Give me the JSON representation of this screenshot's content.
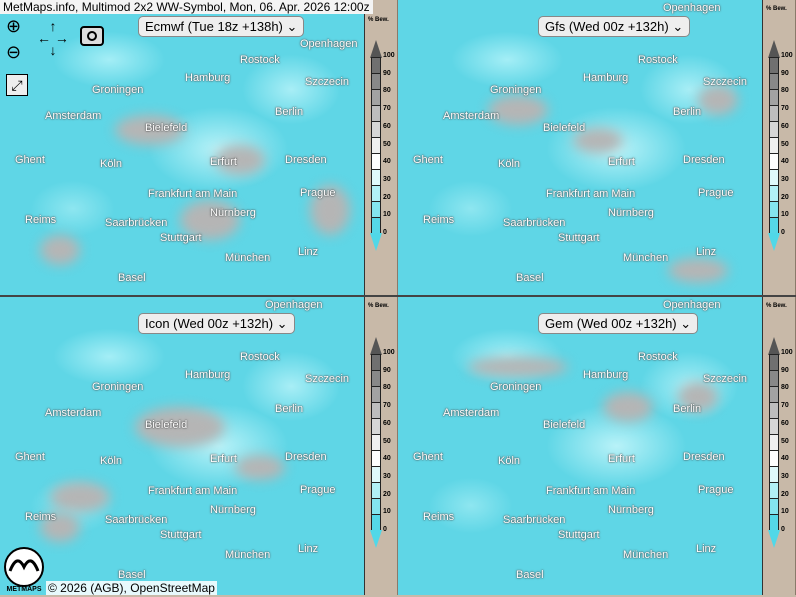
{
  "title": "MetMaps.info, Multimod 2x2 WW-Symbol, Mon, 06. Apr. 2026 12:00z",
  "panels": [
    {
      "model": "Ecmwf (Tue 18z +138h)"
    },
    {
      "model": "Gfs (Wed 00z +132h)"
    },
    {
      "model": "Icon (Wed 00z +132h)"
    },
    {
      "model": "Gem (Wed 00z +132h)"
    }
  ],
  "legend": {
    "title": "% Bew.",
    "ticks": [
      "100",
      "90",
      "80",
      "70",
      "60",
      "50",
      "40",
      "30",
      "20",
      "10",
      "0"
    ],
    "colors": [
      "#707070",
      "#888888",
      "#a2a2a2",
      "#bdbdbd",
      "#d6d6d6",
      "#efefef",
      "#ffffff",
      "#dff9fb",
      "#b2f0f6",
      "#84e5ef",
      "#55d8e8"
    ]
  },
  "cities": [
    "Openhagen",
    "Rostock",
    "Hamburg",
    "Szczecin",
    "Groningen",
    "Amsterdam",
    "Bielefeld",
    "Berlin",
    "Ghent",
    "Köln",
    "Erfurt",
    "Dresden",
    "Frankfurt am Main",
    "Prague",
    "Reims",
    "Saarbrücken",
    "Nürnberg",
    "Stuttgart",
    "München",
    "Linz",
    "Basel"
  ],
  "controls": {
    "zoom_in": "zoom-in-icon",
    "zoom_out": "zoom-out-icon",
    "pan": "pan-arrows-icon",
    "screenshot": "camera-icon",
    "fullscreen": "fullscreen-icon"
  },
  "footer": {
    "copyright": "© 2026 (AGB), OpenStreetMap",
    "logo_text": "METMAPS"
  }
}
